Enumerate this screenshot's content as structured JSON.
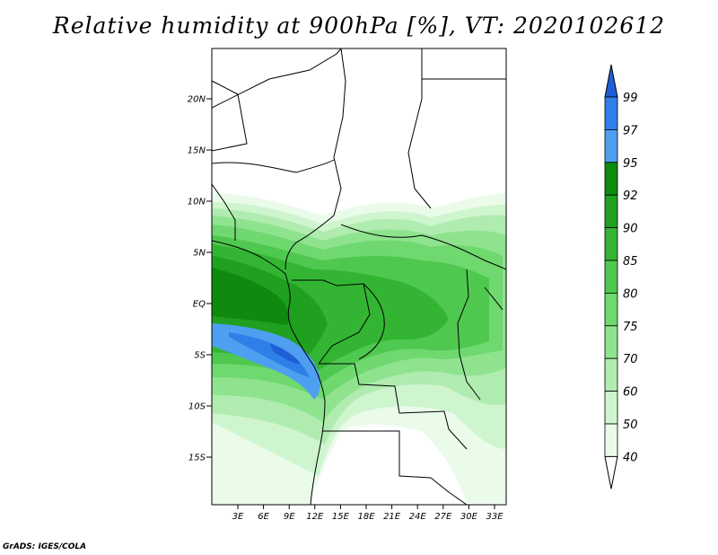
{
  "title": "Relative humidity at 900hPa [%], VT: 2020102612",
  "credit": "GrADS: IGES/COLA",
  "lat_ticks": [
    "20N",
    "15N",
    "10N",
    "5N",
    "EQ",
    "5S",
    "10S",
    "15S"
  ],
  "lon_ticks": [
    "3E",
    "6E",
    "9E",
    "12E",
    "15E",
    "18E",
    "21E",
    "24E",
    "27E",
    "30E",
    "33E"
  ],
  "colorbar": {
    "labels": [
      "99",
      "97",
      "95",
      "92",
      "90",
      "85",
      "80",
      "75",
      "70",
      "60",
      "50",
      "40"
    ],
    "colors": [
      "#1f5fd6",
      "#2f7fe8",
      "#4f9ff0",
      "#0f8a0f",
      "#1fa01f",
      "#33b533",
      "#4fc84f",
      "#6fd86f",
      "#8fe38f",
      "#b0ecb0",
      "#cff5cf",
      "#eafbea"
    ]
  }
}
